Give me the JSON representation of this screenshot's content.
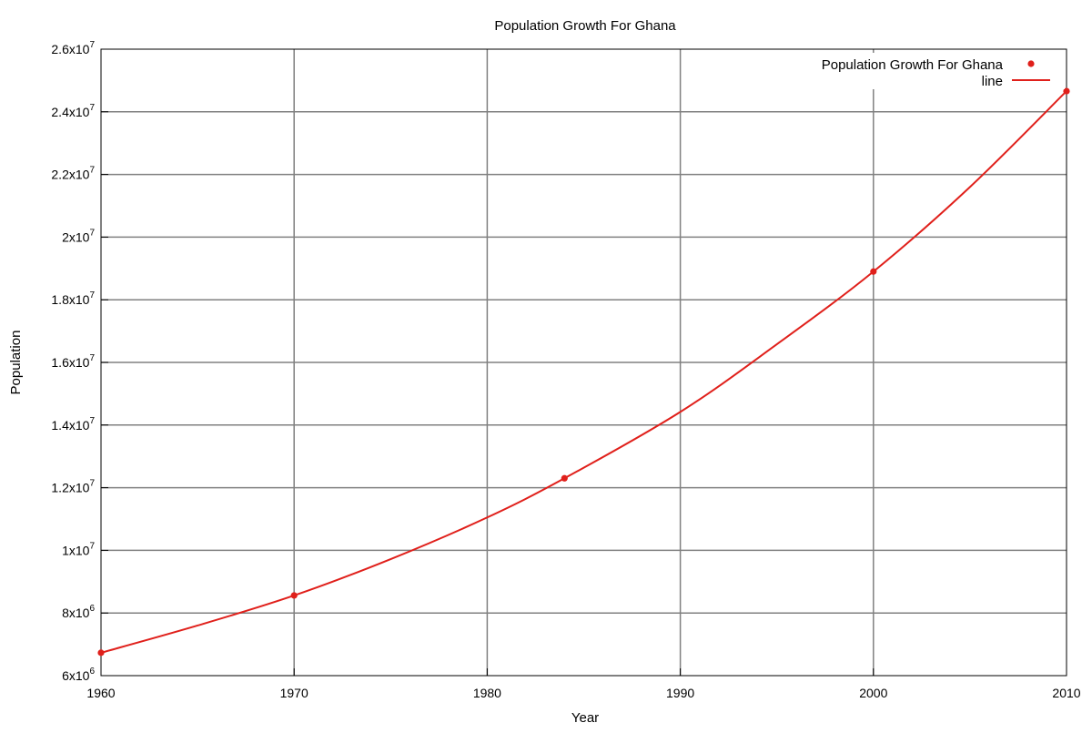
{
  "chart_data": {
    "type": "line",
    "title": "Population Growth For Ghana",
    "xlabel": "Year",
    "ylabel": "Population",
    "xlim": [
      1960,
      2010
    ],
    "ylim": [
      6000000,
      26000000
    ],
    "grid": true,
    "legend_position": "top-right",
    "x_ticks": [
      {
        "value": 1960,
        "label": "1960"
      },
      {
        "value": 1970,
        "label": "1970"
      },
      {
        "value": 1980,
        "label": "1980"
      },
      {
        "value": 1990,
        "label": "1990"
      },
      {
        "value": 2000,
        "label": "2000"
      },
      {
        "value": 2010,
        "label": "2010"
      }
    ],
    "y_ticks": [
      {
        "value": 6000000,
        "mantissa": "6",
        "exp": "6"
      },
      {
        "value": 8000000,
        "mantissa": "8",
        "exp": "6"
      },
      {
        "value": 10000000,
        "mantissa": "1",
        "exp": "7"
      },
      {
        "value": 12000000,
        "mantissa": "1.2",
        "exp": "7"
      },
      {
        "value": 14000000,
        "mantissa": "1.4",
        "exp": "7"
      },
      {
        "value": 16000000,
        "mantissa": "1.6",
        "exp": "7"
      },
      {
        "value": 18000000,
        "mantissa": "1.8",
        "exp": "7"
      },
      {
        "value": 20000000,
        "mantissa": "2",
        "exp": "7"
      },
      {
        "value": 22000000,
        "mantissa": "2.2",
        "exp": "7"
      },
      {
        "value": 24000000,
        "mantissa": "2.4",
        "exp": "7"
      },
      {
        "value": 26000000,
        "mantissa": "2.6",
        "exp": "7"
      }
    ],
    "series": [
      {
        "name": "Population Growth For Ghana",
        "kind": "points",
        "color": "#e0201b",
        "x": [
          1960,
          1970,
          1984,
          2000,
          2010
        ],
        "y": [
          6730000,
          8560000,
          12300000,
          18900000,
          24660000
        ]
      },
      {
        "name": "line",
        "kind": "line",
        "color": "#e0201b",
        "x": [
          1960,
          1965,
          1970,
          1975,
          1980,
          1984,
          1990,
          1995,
          2000,
          2005,
          2010
        ],
        "y": [
          6730000,
          7600000,
          8560000,
          9720000,
          11050000,
          12300000,
          14420000,
          16580000,
          18900000,
          21600000,
          24660000
        ]
      }
    ]
  }
}
